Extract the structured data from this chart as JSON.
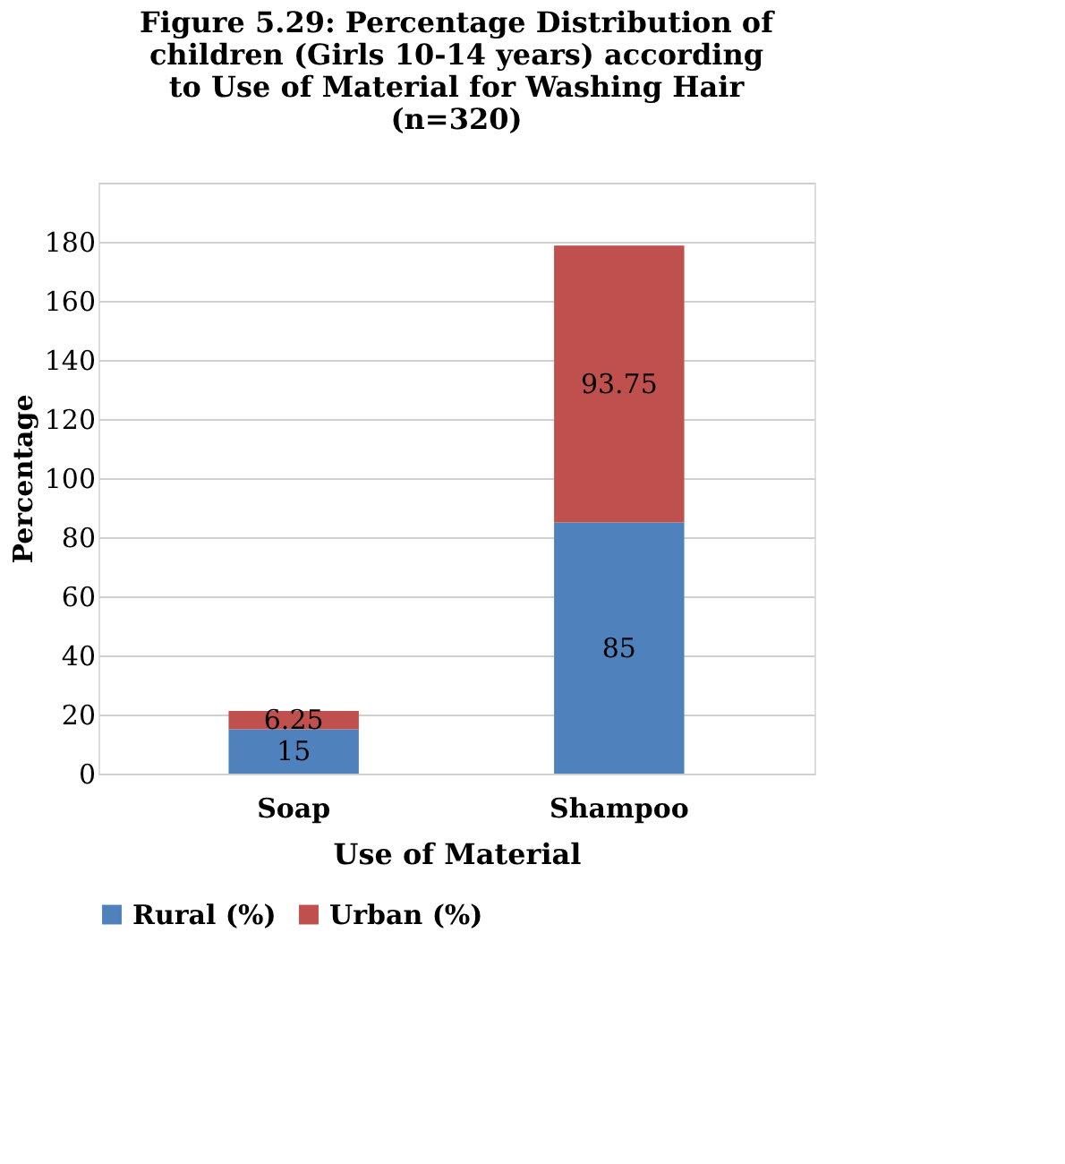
{
  "chart_data": {
    "type": "bar",
    "title": "Figure 5.29: Percentage Distribution of children (Girls 10-14 years) according to Use of Material for Washing Hair (n=320)",
    "categories": [
      "Soap",
      "Shampoo"
    ],
    "series": [
      {
        "name": "Rural (%)",
        "color": "#4f81bd",
        "values": [
          15,
          85
        ]
      },
      {
        "name": "Urban (%)",
        "color": "#c0504d",
        "values": [
          6.25,
          93.75
        ]
      }
    ],
    "stacked": true,
    "data_labels": true,
    "xlabel": "Use of Material",
    "ylabel": "Percentage",
    "ylim": [
      0,
      200
    ],
    "yticks": [
      0,
      20,
      40,
      60,
      80,
      100,
      120,
      140,
      160,
      180,
      {
        "value": 200,
        "label": null
      }
    ],
    "grid": "y",
    "legend": "bottom"
  }
}
